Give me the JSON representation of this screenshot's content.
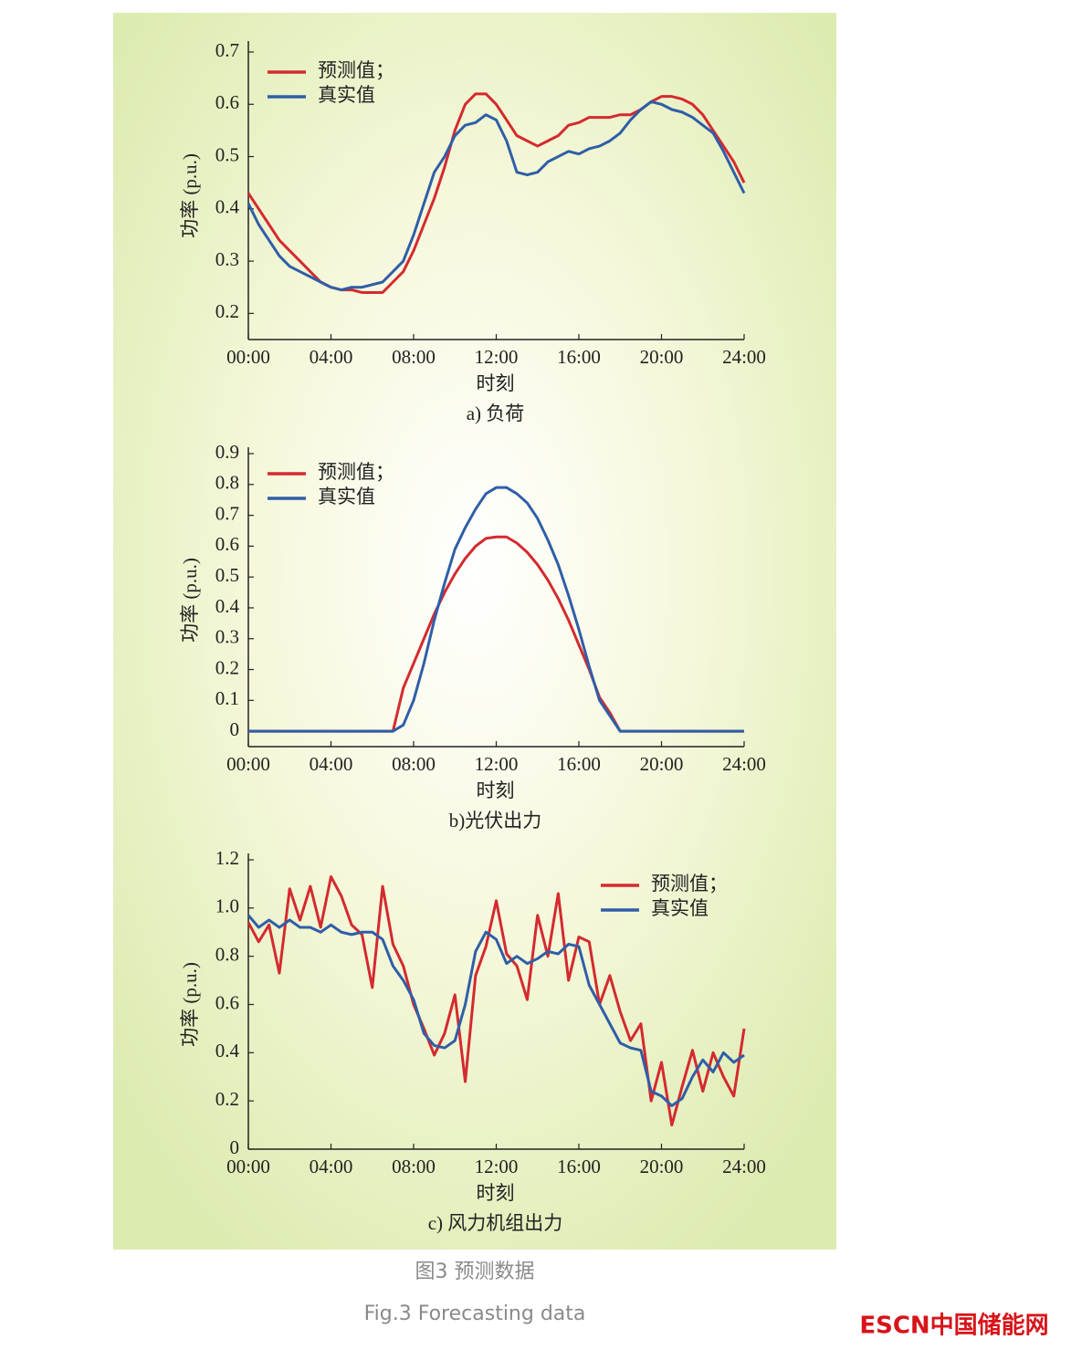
{
  "chart_data": [
    {
      "type": "line",
      "title": "a) 负荷",
      "xlabel": "时刻",
      "ylabel": "功率 (p.u.)",
      "legend": "upper-left",
      "x": [
        0,
        0.5,
        1,
        1.5,
        2,
        2.5,
        3,
        3.5,
        4,
        4.5,
        5,
        5.5,
        6,
        6.5,
        7,
        7.5,
        8,
        8.5,
        9,
        9.5,
        10,
        10.5,
        11,
        11.5,
        12,
        12.5,
        13,
        13.5,
        14,
        14.5,
        15,
        15.5,
        16,
        16.5,
        17,
        17.5,
        18,
        18.5,
        19,
        19.5,
        20,
        20.5,
        21,
        21.5,
        22,
        22.5,
        23,
        23.5,
        24
      ],
      "xlim": [
        0,
        24
      ],
      "xticks": [
        {
          "value": 0,
          "label": "00:00"
        },
        {
          "value": 4,
          "label": "04:00"
        },
        {
          "value": 8,
          "label": "08:00"
        },
        {
          "value": 12,
          "label": "12:00"
        },
        {
          "value": 16,
          "label": "16:00"
        },
        {
          "value": 20,
          "label": "20:00"
        },
        {
          "value": 24,
          "label": "24:00"
        }
      ],
      "ylim": [
        0.15,
        0.7
      ],
      "yticks": [
        0.2,
        0.3,
        0.4,
        0.5,
        0.6,
        0.7
      ],
      "series": [
        {
          "name": "预测值；",
          "color": "#d42a2f",
          "values": [
            0.43,
            0.4,
            0.37,
            0.34,
            0.32,
            0.3,
            0.28,
            0.26,
            0.25,
            0.245,
            0.245,
            0.24,
            0.24,
            0.24,
            0.26,
            0.28,
            0.32,
            0.37,
            0.42,
            0.48,
            0.55,
            0.6,
            0.62,
            0.62,
            0.6,
            0.57,
            0.54,
            0.53,
            0.52,
            0.53,
            0.54,
            0.56,
            0.565,
            0.575,
            0.575,
            0.575,
            0.58,
            0.58,
            0.59,
            0.605,
            0.615,
            0.615,
            0.61,
            0.6,
            0.58,
            0.55,
            0.52,
            0.49,
            0.45
          ]
        },
        {
          "name": "真实值",
          "color": "#2f5ea8",
          "values": [
            0.41,
            0.37,
            0.34,
            0.31,
            0.29,
            0.28,
            0.27,
            0.26,
            0.25,
            0.245,
            0.25,
            0.25,
            0.255,
            0.26,
            0.28,
            0.3,
            0.35,
            0.41,
            0.47,
            0.5,
            0.54,
            0.56,
            0.565,
            0.58,
            0.57,
            0.53,
            0.47,
            0.465,
            0.47,
            0.49,
            0.5,
            0.51,
            0.505,
            0.515,
            0.52,
            0.53,
            0.545,
            0.57,
            0.59,
            0.605,
            0.6,
            0.59,
            0.585,
            0.575,
            0.56,
            0.545,
            0.51,
            0.47,
            0.43
          ]
        }
      ]
    },
    {
      "type": "line",
      "title": "b)光伏出力",
      "xlabel": "时刻",
      "ylabel": "功率 (p.u.)",
      "legend": "upper-left",
      "x": [
        0,
        0.5,
        1,
        1.5,
        2,
        2.5,
        3,
        3.5,
        4,
        4.5,
        5,
        5.5,
        6,
        6.5,
        7,
        7.5,
        8,
        8.5,
        9,
        9.5,
        10,
        10.5,
        11,
        11.5,
        12,
        12.5,
        13,
        13.5,
        14,
        14.5,
        15,
        15.5,
        16,
        16.5,
        17,
        17.5,
        18,
        18.5,
        19,
        19.5,
        20,
        20.5,
        21,
        21.5,
        22,
        22.5,
        23,
        23.5,
        24
      ],
      "xlim": [
        0,
        24
      ],
      "xticks": [
        {
          "value": 0,
          "label": "00:00"
        },
        {
          "value": 4,
          "label": "04:00"
        },
        {
          "value": 8,
          "label": "08:00"
        },
        {
          "value": 12,
          "label": "12:00"
        },
        {
          "value": 16,
          "label": "16:00"
        },
        {
          "value": 20,
          "label": "20:00"
        },
        {
          "value": 24,
          "label": "24:00"
        }
      ],
      "ylim": [
        -0.05,
        0.9
      ],
      "yticks": [
        0,
        0.1,
        0.2,
        0.3,
        0.4,
        0.5,
        0.6,
        0.7,
        0.8,
        0.9
      ],
      "series": [
        {
          "name": "预测值；",
          "color": "#d42a2f",
          "values": [
            0,
            0,
            0,
            0,
            0,
            0,
            0,
            0,
            0,
            0,
            0,
            0,
            0,
            0,
            0,
            0.14,
            0.22,
            0.3,
            0.38,
            0.45,
            0.51,
            0.56,
            0.6,
            0.625,
            0.63,
            0.63,
            0.61,
            0.58,
            0.54,
            0.49,
            0.43,
            0.36,
            0.28,
            0.2,
            0.11,
            0.06,
            0,
            0,
            0,
            0,
            0,
            0,
            0,
            0,
            0,
            0,
            0,
            0,
            0
          ]
        },
        {
          "name": "真实值",
          "color": "#2f5ea8",
          "values": [
            0,
            0,
            0,
            0,
            0,
            0,
            0,
            0,
            0,
            0,
            0,
            0,
            0,
            0,
            0,
            0.02,
            0.1,
            0.22,
            0.36,
            0.48,
            0.59,
            0.66,
            0.72,
            0.77,
            0.79,
            0.79,
            0.77,
            0.74,
            0.69,
            0.62,
            0.54,
            0.44,
            0.33,
            0.21,
            0.1,
            0.05,
            0,
            0,
            0,
            0,
            0,
            0,
            0,
            0,
            0,
            0,
            0,
            0,
            0
          ]
        }
      ]
    },
    {
      "type": "line",
      "title": "c) 风力机组出力",
      "xlabel": "时刻",
      "ylabel": "功率 (p.u.)",
      "legend": "upper-right",
      "x": [
        0,
        0.5,
        1,
        1.5,
        2,
        2.5,
        3,
        3.5,
        4,
        4.5,
        5,
        5.5,
        6,
        6.5,
        7,
        7.5,
        8,
        8.5,
        9,
        9.5,
        10,
        10.5,
        11,
        11.5,
        12,
        12.5,
        13,
        13.5,
        14,
        14.5,
        15,
        15.5,
        16,
        16.5,
        17,
        17.5,
        18,
        18.5,
        19,
        19.5,
        20,
        20.5,
        21,
        21.5,
        22,
        22.5,
        23,
        23.5,
        24
      ],
      "xlim": [
        0,
        24
      ],
      "xticks": [
        {
          "value": 0,
          "label": "00:00"
        },
        {
          "value": 4,
          "label": "04:00"
        },
        {
          "value": 8,
          "label": "08:00"
        },
        {
          "value": 12,
          "label": "12:00"
        },
        {
          "value": 16,
          "label": "16:00"
        },
        {
          "value": 20,
          "label": "20:00"
        },
        {
          "value": 24,
          "label": "24:00"
        }
      ],
      "ylim": [
        0,
        1.2
      ],
      "yticks": [
        0,
        0.2,
        0.4,
        0.6,
        0.8,
        {
          "value": 1,
          "label": "1.0"
        },
        1.2
      ],
      "series": [
        {
          "name": "预测值；",
          "color": "#d42a2f",
          "values": [
            0.94,
            0.86,
            0.93,
            0.73,
            1.08,
            0.95,
            1.09,
            0.92,
            1.13,
            1.05,
            0.93,
            0.89,
            0.67,
            1.09,
            0.85,
            0.76,
            0.6,
            0.5,
            0.39,
            0.48,
            0.64,
            0.28,
            0.72,
            0.84,
            1.03,
            0.81,
            0.76,
            0.62,
            0.97,
            0.8,
            1.06,
            0.7,
            0.88,
            0.86,
            0.6,
            0.72,
            0.57,
            0.45,
            0.52,
            0.2,
            0.36,
            0.1,
            0.26,
            0.41,
            0.24,
            0.4,
            0.3,
            0.22,
            0.5
          ]
        },
        {
          "name": "真实值",
          "color": "#2f5ea8",
          "values": [
            0.97,
            0.92,
            0.95,
            0.92,
            0.95,
            0.92,
            0.92,
            0.9,
            0.93,
            0.9,
            0.89,
            0.9,
            0.9,
            0.87,
            0.76,
            0.7,
            0.62,
            0.48,
            0.43,
            0.42,
            0.45,
            0.6,
            0.82,
            0.9,
            0.87,
            0.77,
            0.8,
            0.77,
            0.79,
            0.82,
            0.81,
            0.85,
            0.84,
            0.68,
            0.6,
            0.52,
            0.44,
            0.42,
            0.41,
            0.24,
            0.22,
            0.18,
            0.21,
            0.3,
            0.37,
            0.32,
            0.4,
            0.36,
            0.39
          ]
        }
      ]
    }
  ],
  "caption": "图3  预测数据",
  "caption_en": "Fig.3  Forecasting data",
  "watermark": "ESCN中国储能网"
}
